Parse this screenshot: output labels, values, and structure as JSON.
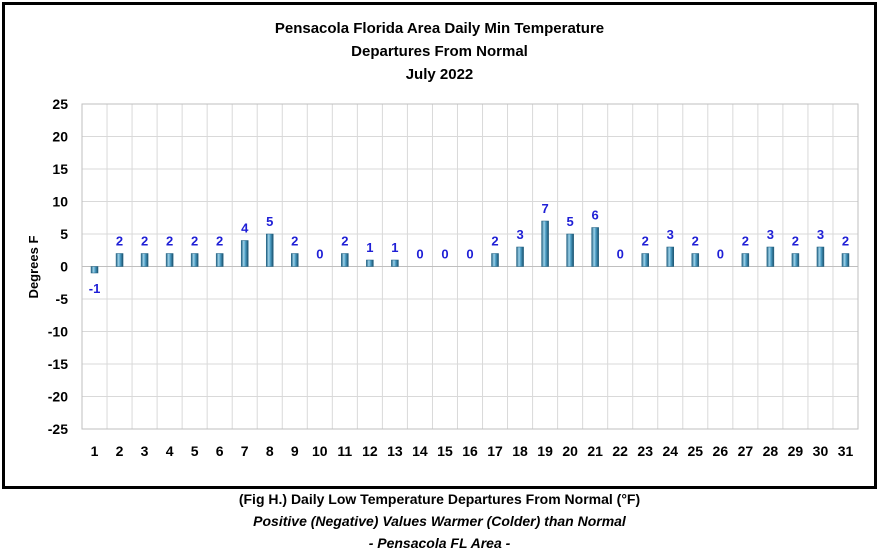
{
  "chart_data": {
    "type": "bar",
    "title_lines": [
      "Pensacola Florida Area Daily Min Temperature",
      "Departures From Normal",
      "July 2022"
    ],
    "ylabel": "Degrees F",
    "xlabel": "",
    "ylim": [
      -25,
      25
    ],
    "yticks": [
      25,
      20,
      15,
      10,
      5,
      0,
      -5,
      -10,
      -15,
      -20,
      -25
    ],
    "grid": true,
    "categories": [
      "1",
      "2",
      "3",
      "4",
      "5",
      "6",
      "7",
      "8",
      "9",
      "10",
      "11",
      "12",
      "13",
      "14",
      "15",
      "16",
      "17",
      "18",
      "19",
      "20",
      "21",
      "22",
      "23",
      "24",
      "25",
      "26",
      "27",
      "28",
      "29",
      "30",
      "31"
    ],
    "values": [
      -1,
      2,
      2,
      2,
      2,
      2,
      4,
      5,
      2,
      0,
      2,
      1,
      1,
      0,
      0,
      0,
      2,
      3,
      7,
      5,
      6,
      0,
      2,
      3,
      2,
      0,
      2,
      3,
      2,
      3,
      2
    ],
    "data_labels": [
      "-1",
      "2",
      "2",
      "2",
      "2",
      "2",
      "4",
      "5",
      "2",
      "0",
      "2",
      "1",
      "1",
      "0",
      "0",
      "0",
      "2",
      "3",
      "7",
      "5",
      "6",
      "0",
      "2",
      "3",
      "2",
      "0",
      "2",
      "3",
      "2",
      "3",
      "2"
    ],
    "colors": {
      "bar": "#4a9cc4",
      "bar_dark": "#1f5f80",
      "bar_light": "#9fd3ea",
      "label": "#1f1fd6",
      "grid": "#d9d9d9"
    }
  },
  "caption": {
    "line1": "(Fig H.) Daily Low Temperature Departures From Normal (°F)",
    "line2": "Positive (Negative) Values Warmer (Colder) than Normal",
    "line3": "- Pensacola FL Area -"
  }
}
